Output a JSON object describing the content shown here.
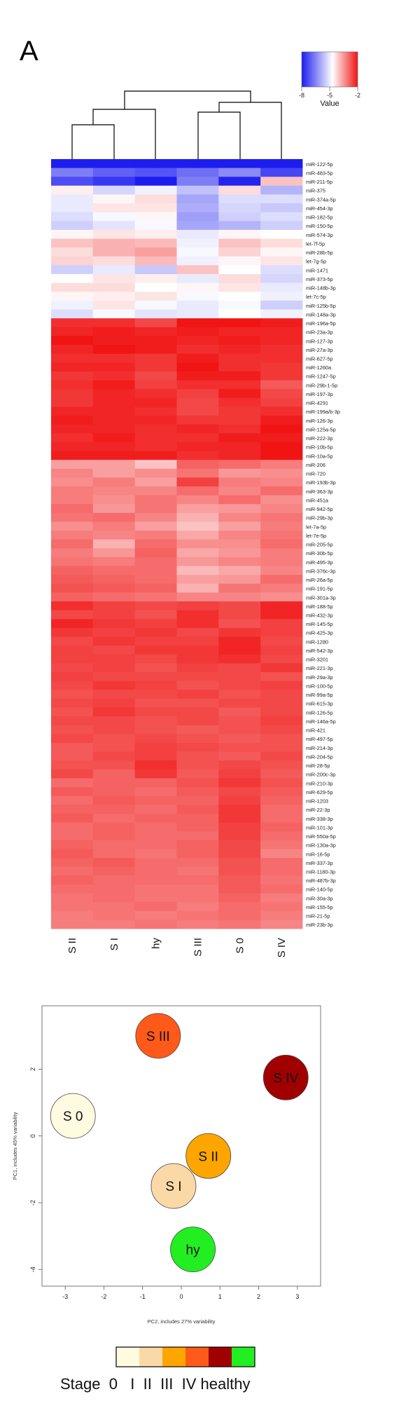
{
  "panel_label": "A",
  "chart_data": [
    {
      "type": "heatmap",
      "color_key": {
        "title": "Value",
        "ticks": [
          "-8",
          "-5",
          "-2"
        ],
        "range": [
          -8,
          -2
        ],
        "low_color": "#1d1df0",
        "mid_color": "#ffffff",
        "high_color": "#f01414"
      },
      "columns": [
        "S II",
        "S I",
        "hy",
        "S III",
        "S 0",
        "S IV"
      ],
      "dendrogram": "((S II,S I),hy),(S III,S 0),S IV)",
      "rows": [
        {
          "label": "miR-122-5p",
          "values": [
            -8.0,
            -8.0,
            -8.0,
            -8.0,
            -8.0,
            -8.0
          ]
        },
        {
          "label": "miR-483-5p",
          "values": [
            -6.6,
            -7.0,
            -7.2,
            -6.8,
            -6.4,
            -7.4
          ]
        },
        {
          "label": "miR-211-5p",
          "values": [
            -7.3,
            -7.6,
            -8.0,
            -6.6,
            -7.9,
            -4.0
          ]
        },
        {
          "label": "miR-375",
          "values": [
            -4.5,
            -5.3,
            -4.9,
            -5.6,
            -4.3,
            -5.8
          ]
        },
        {
          "label": "miR-374a-5p",
          "values": [
            -5.0,
            -4.6,
            -4.3,
            -6.0,
            -5.2,
            -5.2
          ]
        },
        {
          "label": "miR-454-3p",
          "values": [
            -5.0,
            -4.4,
            -4.4,
            -5.9,
            -5.3,
            -5.5
          ]
        },
        {
          "label": "miR-182-5p",
          "values": [
            -5.2,
            -4.8,
            -4.6,
            -6.1,
            -5.4,
            -5.2
          ]
        },
        {
          "label": "miR-150-5p",
          "values": [
            -5.4,
            -5.1,
            -4.8,
            -6.0,
            -5.8,
            -5.4
          ]
        },
        {
          "label": "miR-574-3p",
          "values": [
            -4.6,
            -4.4,
            -4.5,
            -5.0,
            -4.6,
            -4.7
          ]
        },
        {
          "label": "let-7f-5p",
          "values": [
            -4.0,
            -3.8,
            -3.9,
            -4.9,
            -4.0,
            -4.3
          ]
        },
        {
          "label": "miR-28b-5p",
          "values": [
            -4.3,
            -3.8,
            -3.6,
            -4.8,
            -4.2,
            -4.6
          ]
        },
        {
          "label": "let-7g-5p",
          "values": [
            -4.2,
            -4.3,
            -3.9,
            -4.9,
            -4.6,
            -4.4
          ]
        },
        {
          "label": "miR-1471",
          "values": [
            -5.4,
            -5.0,
            -5.5,
            -4.0,
            -4.7,
            -5.2
          ]
        },
        {
          "label": "miR-373-5p",
          "values": [
            -4.7,
            -4.4,
            -4.5,
            -5.0,
            -4.3,
            -5.3
          ]
        },
        {
          "label": "miR-148b-3p",
          "values": [
            -4.3,
            -4.3,
            -4.7,
            -4.6,
            -4.4,
            -5.0
          ]
        },
        {
          "label": "let-7c-5p",
          "values": [
            -4.6,
            -4.5,
            -4.4,
            -4.8,
            -4.7,
            -4.9
          ]
        },
        {
          "label": "miR-125b-5p",
          "values": [
            -4.9,
            -4.4,
            -4.8,
            -5.0,
            -4.8,
            -5.4
          ]
        },
        {
          "label": "miR-148a-3p",
          "values": [
            -5.2,
            -4.8,
            -5.1,
            -5.0,
            -4.7,
            -4.9
          ]
        },
        {
          "label": "miR-196a-5p",
          "values": [
            -2.3,
            -2.3,
            -2.6,
            -2.0,
            -2.0,
            -2.1
          ]
        },
        {
          "label": "miR-23a-3p",
          "values": [
            -2.2,
            -2.1,
            -2.2,
            -2.1,
            -2.2,
            -2.2
          ]
        },
        {
          "label": "miR-127-3p",
          "values": [
            -2.0,
            -2.1,
            -2.1,
            -2.2,
            -2.1,
            -2.2
          ]
        },
        {
          "label": "miR-27a-3p",
          "values": [
            -2.2,
            -2.0,
            -2.1,
            -2.3,
            -2.2,
            -2.3
          ]
        },
        {
          "label": "miR-627-5p",
          "values": [
            -2.3,
            -2.3,
            -2.4,
            -2.1,
            -2.3,
            -2.3
          ]
        },
        {
          "label": "miR-1260a",
          "values": [
            -2.2,
            -2.2,
            -2.4,
            -2.0,
            -2.3,
            -2.4
          ]
        },
        {
          "label": "miR-1247-5p",
          "values": [
            -2.4,
            -2.3,
            -2.6,
            -2.1,
            -2.1,
            -2.4
          ]
        },
        {
          "label": "miR-29b-1-5p",
          "values": [
            -2.3,
            -2.1,
            -2.5,
            -2.3,
            -2.3,
            -2.8
          ]
        },
        {
          "label": "miR-197-3p",
          "values": [
            -2.4,
            -2.2,
            -2.3,
            -2.5,
            -2.1,
            -2.6
          ]
        },
        {
          "label": "miR-4291",
          "values": [
            -2.4,
            -2.2,
            -2.2,
            -2.6,
            -2.3,
            -2.5
          ]
        },
        {
          "label": "miR-199a/b-3p",
          "values": [
            -2.2,
            -2.2,
            -2.3,
            -2.6,
            -2.4,
            -2.3
          ]
        },
        {
          "label": "miR-126-3p",
          "values": [
            -2.1,
            -2.2,
            -2.2,
            -2.4,
            -2.4,
            -2.1
          ]
        },
        {
          "label": "miR-125a-5p",
          "values": [
            -2.2,
            -2.2,
            -2.3,
            -2.2,
            -2.3,
            -2.0
          ]
        },
        {
          "label": "miR-222-3p",
          "values": [
            -2.3,
            -2.1,
            -2.3,
            -2.3,
            -2.1,
            -2.1
          ]
        },
        {
          "label": "miR-10b-5p",
          "values": [
            -2.2,
            -2.2,
            -2.3,
            -2.2,
            -2.2,
            -2.0
          ]
        },
        {
          "label": "miR-10a-5p",
          "values": [
            -2.1,
            -2.1,
            -2.1,
            -2.3,
            -2.2,
            -2.0
          ]
        },
        {
          "label": "miR-206",
          "values": [
            -3.6,
            -3.6,
            -4.0,
            -2.9,
            -3.0,
            -3.2
          ]
        },
        {
          "label": "miR-720",
          "values": [
            -3.3,
            -3.6,
            -3.4,
            -3.1,
            -3.5,
            -3.4
          ]
        },
        {
          "label": "miR-193b-3p",
          "values": [
            -3.4,
            -3.2,
            -3.6,
            -2.5,
            -3.2,
            -3.3
          ]
        },
        {
          "label": "miR-363-3p",
          "values": [
            -3.2,
            -3.3,
            -3.3,
            -3.0,
            -3.3,
            -3.0
          ]
        },
        {
          "label": "miR-451a",
          "values": [
            -3.2,
            -3.4,
            -3.1,
            -3.3,
            -3.0,
            -3.4
          ]
        },
        {
          "label": "miR-942-5p",
          "values": [
            -3.0,
            -3.5,
            -3.1,
            -3.6,
            -3.5,
            -3.3
          ]
        },
        {
          "label": "miR-29b-3p",
          "values": [
            -3.1,
            -3.0,
            -3.3,
            -3.8,
            -3.3,
            -3.1
          ]
        },
        {
          "label": "let-7a-5p",
          "values": [
            -3.4,
            -3.2,
            -3.6,
            -4.0,
            -3.6,
            -3.2
          ]
        },
        {
          "label": "let-7e-5p",
          "values": [
            -3.2,
            -3.3,
            -3.2,
            -3.7,
            -3.3,
            -3.1
          ]
        },
        {
          "label": "miR-205-5p",
          "values": [
            -3.0,
            -3.8,
            -3.0,
            -3.4,
            -3.4,
            -3.0
          ]
        },
        {
          "label": "miR-30b-5p",
          "values": [
            -3.2,
            -3.5,
            -2.9,
            -3.7,
            -3.5,
            -3.2
          ]
        },
        {
          "label": "miR-495-3p",
          "values": [
            -3.1,
            -3.2,
            -3.0,
            -3.5,
            -3.3,
            -3.2
          ]
        },
        {
          "label": "miR-376c-3p",
          "values": [
            -2.9,
            -3.0,
            -3.0,
            -3.9,
            -3.7,
            -3.3
          ]
        },
        {
          "label": "miR-26a-5p",
          "values": [
            -2.8,
            -2.9,
            -3.0,
            -3.6,
            -3.5,
            -3.0
          ]
        },
        {
          "label": "miR-191-5p",
          "values": [
            -2.7,
            -2.8,
            -2.9,
            -3.8,
            -3.1,
            -3.2
          ]
        },
        {
          "label": "miR-301a-3p",
          "values": [
            -2.9,
            -3.0,
            -3.1,
            -3.3,
            -3.3,
            -3.4
          ]
        },
        {
          "label": "miR-188-5p",
          "values": [
            -2.3,
            -2.5,
            -2.6,
            -2.5,
            -2.6,
            -2.2
          ]
        },
        {
          "label": "miR-432-3p",
          "values": [
            -2.6,
            -2.5,
            -2.7,
            -2.3,
            -2.6,
            -2.2
          ]
        },
        {
          "label": "miR-145-5p",
          "values": [
            -2.2,
            -2.4,
            -2.5,
            -2.3,
            -2.7,
            -2.5
          ]
        },
        {
          "label": "miR-425-3p",
          "values": [
            -2.4,
            -2.5,
            -2.4,
            -2.6,
            -2.4,
            -2.5
          ]
        },
        {
          "label": "miR-1280",
          "values": [
            -2.6,
            -2.4,
            -2.5,
            -2.5,
            -2.2,
            -2.6
          ]
        },
        {
          "label": "miR-542-3p",
          "values": [
            -2.5,
            -2.6,
            -2.4,
            -2.4,
            -2.2,
            -2.5
          ]
        },
        {
          "label": "miR-3201",
          "values": [
            -2.5,
            -2.5,
            -2.6,
            -2.4,
            -2.3,
            -2.6
          ]
        },
        {
          "label": "miR-221-3p",
          "values": [
            -2.6,
            -2.5,
            -2.7,
            -2.5,
            -2.6,
            -2.4
          ]
        },
        {
          "label": "miR-29a-3p",
          "values": [
            -2.5,
            -2.6,
            -2.6,
            -2.6,
            -2.6,
            -2.7
          ]
        },
        {
          "label": "miR-100-5p",
          "values": [
            -2.6,
            -2.4,
            -2.5,
            -2.7,
            -2.6,
            -2.5
          ]
        },
        {
          "label": "miR-99a-5p",
          "values": [
            -2.7,
            -2.6,
            -2.6,
            -2.5,
            -2.7,
            -2.6
          ]
        },
        {
          "label": "miR-615-3p",
          "values": [
            -2.6,
            -2.5,
            -2.7,
            -2.7,
            -2.6,
            -2.6
          ]
        },
        {
          "label": "miR-126-5p",
          "values": [
            -2.7,
            -2.4,
            -2.6,
            -2.6,
            -2.8,
            -2.6
          ]
        },
        {
          "label": "miR-146a-5p",
          "values": [
            -2.6,
            -2.6,
            -2.7,
            -2.6,
            -2.7,
            -2.5
          ]
        },
        {
          "label": "miR-421",
          "values": [
            -2.7,
            -2.6,
            -2.7,
            -2.8,
            -2.7,
            -2.6
          ]
        },
        {
          "label": "miR-497-5p",
          "values": [
            -2.6,
            -2.7,
            -2.6,
            -2.7,
            -2.8,
            -2.7
          ]
        },
        {
          "label": "miR-214-3p",
          "values": [
            -2.8,
            -2.7,
            -2.5,
            -2.6,
            -2.7,
            -2.7
          ]
        },
        {
          "label": "miR-204-5p",
          "values": [
            -2.8,
            -2.6,
            -2.5,
            -2.7,
            -2.8,
            -2.6
          ]
        },
        {
          "label": "miR-28-5p",
          "values": [
            -2.7,
            -2.7,
            -2.3,
            -2.7,
            -2.6,
            -2.7
          ]
        },
        {
          "label": "miR-200c-3p",
          "values": [
            -2.6,
            -2.9,
            -2.4,
            -2.8,
            -2.5,
            -2.8
          ]
        },
        {
          "label": "miR-210-3p",
          "values": [
            -3.0,
            -2.9,
            -2.9,
            -2.7,
            -2.4,
            -2.7
          ]
        },
        {
          "label": "miR-629-5p",
          "values": [
            -2.8,
            -2.9,
            -3.0,
            -2.8,
            -2.6,
            -2.8
          ]
        },
        {
          "label": "miR-1203",
          "values": [
            -3.0,
            -2.8,
            -2.9,
            -2.9,
            -2.5,
            -2.9
          ]
        },
        {
          "label": "miR-22-3p",
          "values": [
            -2.9,
            -2.9,
            -3.0,
            -2.8,
            -2.4,
            -3.0
          ]
        },
        {
          "label": "miR-338-3p",
          "values": [
            -2.8,
            -3.0,
            -2.9,
            -2.9,
            -2.4,
            -3.0
          ]
        },
        {
          "label": "miR-101-3p",
          "values": [
            -3.0,
            -2.9,
            -3.0,
            -2.9,
            -2.5,
            -2.9
          ]
        },
        {
          "label": "miR-550a-5p",
          "values": [
            -3.0,
            -2.9,
            -3.0,
            -3.0,
            -2.5,
            -3.0
          ]
        },
        {
          "label": "miR-130a-3p",
          "values": [
            -2.9,
            -3.0,
            -3.0,
            -2.9,
            -2.6,
            -3.1
          ]
        },
        {
          "label": "miR-16-5p",
          "values": [
            -2.8,
            -3.0,
            -3.1,
            -2.9,
            -2.6,
            -3.3
          ]
        },
        {
          "label": "miR-337-3p",
          "values": [
            -2.9,
            -2.8,
            -3.0,
            -3.0,
            -2.7,
            -3.0
          ]
        },
        {
          "label": "miR-1180-3p",
          "values": [
            -3.0,
            -2.9,
            -3.0,
            -3.1,
            -2.7,
            -3.0
          ]
        },
        {
          "label": "miR-487b-3p",
          "values": [
            -2.9,
            -3.0,
            -3.0,
            -3.0,
            -2.8,
            -3.1
          ]
        },
        {
          "label": "miR-140-5p",
          "values": [
            -3.0,
            -3.0,
            -3.1,
            -3.1,
            -2.8,
            -3.0
          ]
        },
        {
          "label": "miR-30a-3p",
          "values": [
            -3.1,
            -3.0,
            -3.1,
            -3.1,
            -2.9,
            -3.2
          ]
        },
        {
          "label": "miR-155-5p",
          "values": [
            -3.1,
            -3.1,
            -3.0,
            -3.2,
            -3.0,
            -3.1
          ]
        },
        {
          "label": "miR-21-5p",
          "values": [
            -3.2,
            -3.1,
            -3.2,
            -3.1,
            -3.0,
            -3.2
          ]
        },
        {
          "label": "miR-23b-3p",
          "values": [
            -3.2,
            -3.2,
            -3.1,
            -3.2,
            -3.1,
            -3.3
          ]
        }
      ]
    },
    {
      "type": "scatter",
      "xlabel": "PC2, includes 27% variability",
      "ylabel": "PC1, includes 45% variability",
      "xlim": [
        -3.6,
        3.6
      ],
      "ylim": [
        -4.5,
        3.9
      ],
      "xticks": [
        -3,
        -2,
        -1,
        0,
        1,
        2,
        3
      ],
      "yticks": [
        -4,
        -2,
        0,
        2
      ],
      "points": [
        {
          "label": "S III",
          "x": -0.6,
          "y": 3.0,
          "color": "#ff5a1a"
        },
        {
          "label": "S IV",
          "x": 2.7,
          "y": 1.75,
          "color": "#a00000"
        },
        {
          "label": "S 0",
          "x": -2.8,
          "y": 0.6,
          "color": "#fffbe0"
        },
        {
          "label": "S II",
          "x": 0.7,
          "y": -0.6,
          "color": "#ffa500"
        },
        {
          "label": "S I",
          "x": -0.2,
          "y": -1.5,
          "color": "#fbd9a6"
        },
        {
          "label": "hy",
          "x": 0.3,
          "y": -3.4,
          "color": "#22ee22"
        }
      ],
      "legend": {
        "text": "Stage  0   I  II  III  IV healthy",
        "colors": [
          "#fffbe0",
          "#fbd9a6",
          "#ffa500",
          "#ff5a1a",
          "#a00000",
          "#22ee22"
        ]
      }
    }
  ]
}
